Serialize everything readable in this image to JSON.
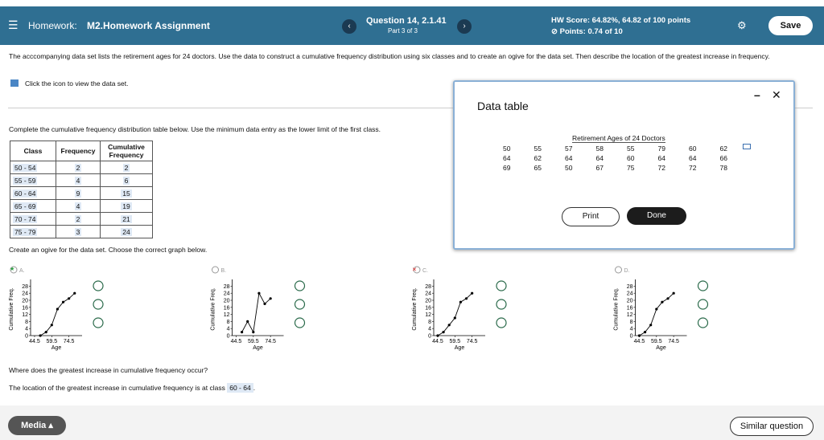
{
  "header": {
    "menu_label": "Homework:",
    "assignment": "M2.Homework Assignment",
    "question": "Question 14, 2.1.41",
    "part": "Part 3 of 3",
    "hw_score": "HW Score: 64.82%, 64.82 of 100 points",
    "points": "Points: 0.74 of 10",
    "save": "Save"
  },
  "instructions": "The acccompanying data set lists the retirement ages for 24 doctors. Use the data to construct a cumulative frequency distribution using six classes and to create an ogive for the data set. Then describe the location of the greatest increase in frequency.",
  "view_data": "Click the icon to view the data set.",
  "table_prompt": "Complete the cumulative frequency distribution table below. Use the minimum data entry as the lower limit of the first class.",
  "table": {
    "headers": [
      "Class",
      "Frequency",
      "Cumulative Frequency"
    ],
    "rows": [
      [
        "50 - 54",
        "2",
        "2"
      ],
      [
        "55 - 59",
        "4",
        "6"
      ],
      [
        "60 - 64",
        "9",
        "15"
      ],
      [
        "65 - 69",
        "4",
        "19"
      ],
      [
        "70 - 74",
        "2",
        "21"
      ],
      [
        "75 - 79",
        "3",
        "24"
      ]
    ]
  },
  "ogive_prompt": "Create an ogive for the data set. Choose the correct graph below.",
  "graph": {
    "ylabel": "Cumulative Freq.",
    "xlabel": "Age",
    "xlim": [
      41,
      86
    ],
    "ylim": [
      0,
      30
    ],
    "xticks": [
      44.5,
      59.5,
      74.5
    ],
    "yticks": [
      0,
      4,
      8,
      12,
      16,
      20,
      24,
      28
    ]
  },
  "options": [
    {
      "letter": "A.",
      "x": [
        49.5,
        54.5,
        59.5,
        64.5,
        69.5,
        74.5,
        79.5
      ],
      "y": [
        0,
        2,
        6,
        15,
        19,
        21,
        24
      ]
    },
    {
      "letter": "B.",
      "x": [
        49.5,
        54.5,
        59.5,
        64.5,
        69.5,
        74.5
      ],
      "y": [
        2,
        8,
        2,
        24,
        18,
        21
      ]
    },
    {
      "letter": "C.",
      "x": [
        44.5,
        49.5,
        54.5,
        59.5,
        64.5,
        69.5,
        74.5
      ],
      "y": [
        0,
        2,
        6,
        10,
        19,
        21,
        24
      ]
    },
    {
      "letter": "D.",
      "x": [
        44.5,
        49.5,
        54.5,
        59.5,
        64.5,
        69.5,
        74.5
      ],
      "y": [
        0,
        2,
        6,
        15,
        19,
        21,
        24
      ]
    }
  ],
  "question2": "Where does the greatest increase in cumulative frequency occur?",
  "answer": {
    "prefix": "The location of the greatest increase in cumulative frequency is at class",
    "value": "60 - 64",
    "suffix": "."
  },
  "footer": {
    "media": "Media",
    "similar": "Similar question"
  },
  "dialog": {
    "title": "Data table",
    "caption": "Retirement Ages of 24 Doctors",
    "rows": [
      [
        "50",
        "55",
        "57",
        "58",
        "55",
        "79",
        "60",
        "62"
      ],
      [
        "64",
        "62",
        "64",
        "64",
        "60",
        "64",
        "64",
        "66"
      ],
      [
        "69",
        "65",
        "50",
        "67",
        "75",
        "72",
        "72",
        "78"
      ]
    ],
    "print": "Print",
    "done": "Done"
  }
}
